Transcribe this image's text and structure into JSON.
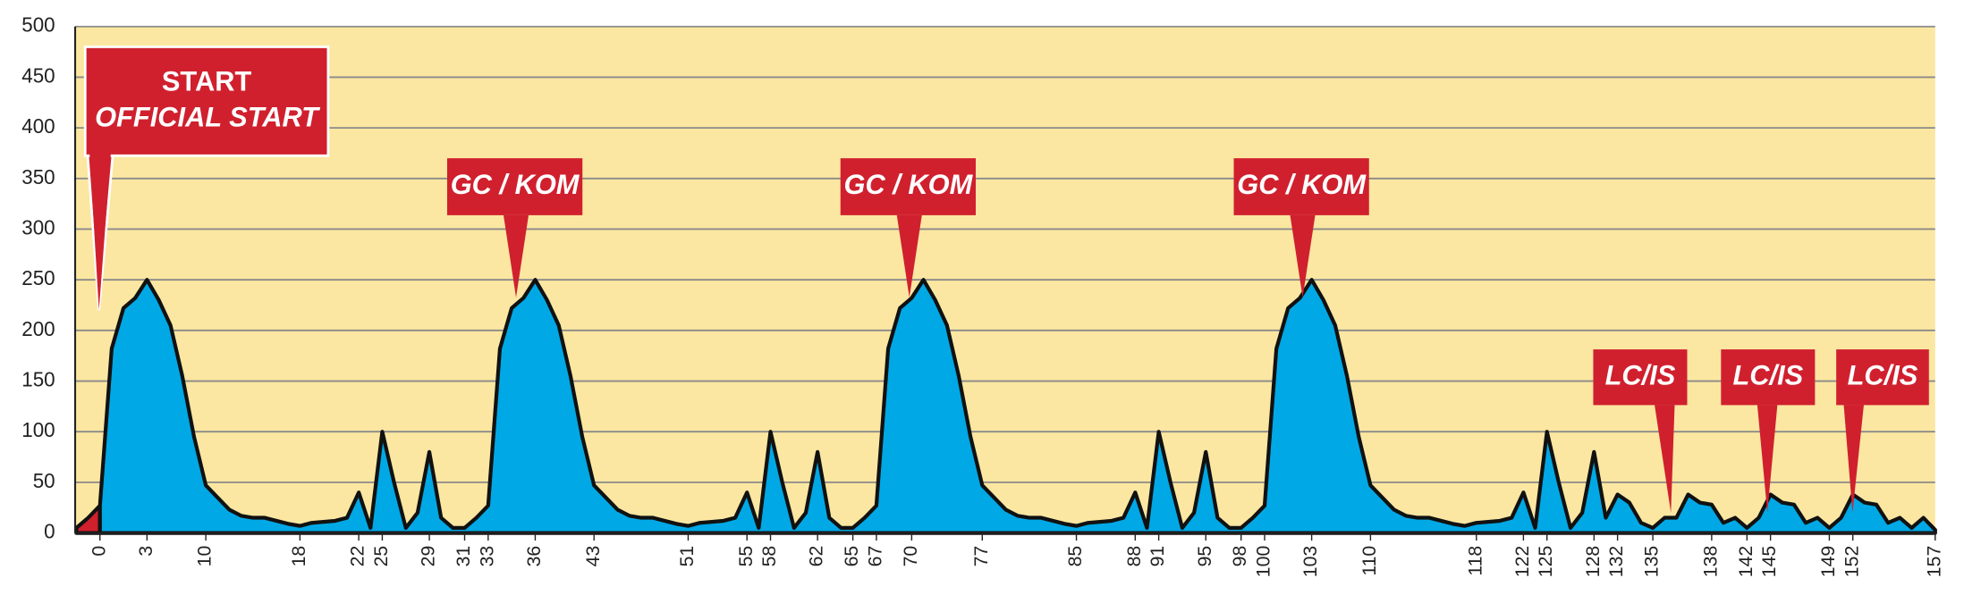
{
  "chart_data": {
    "type": "area",
    "categories": [
      null,
      null,
      0,
      null,
      null,
      null,
      3,
      null,
      null,
      null,
      null,
      10,
      null,
      null,
      null,
      null,
      null,
      null,
      null,
      18,
      null,
      null,
      null,
      null,
      22,
      null,
      25,
      null,
      null,
      null,
      29,
      null,
      null,
      31,
      null,
      33,
      null,
      null,
      null,
      36,
      null,
      null,
      null,
      null,
      43,
      null,
      null,
      null,
      null,
      null,
      null,
      null,
      51,
      null,
      null,
      null,
      null,
      55,
      null,
      58,
      null,
      null,
      null,
      62,
      null,
      null,
      65,
      null,
      67,
      null,
      null,
      70,
      null,
      null,
      null,
      null,
      null,
      77,
      null,
      null,
      null,
      null,
      null,
      null,
      null,
      85,
      null,
      null,
      null,
      null,
      88,
      null,
      91,
      null,
      null,
      null,
      95,
      null,
      null,
      98,
      null,
      100,
      null,
      null,
      null,
      103,
      null,
      null,
      null,
      null,
      110,
      null,
      null,
      null,
      null,
      null,
      null,
      null,
      null,
      118,
      null,
      null,
      null,
      122,
      null,
      125,
      null,
      null,
      null,
      128,
      null,
      132,
      null,
      null,
      135,
      null,
      null,
      null,
      null,
      138,
      null,
      null,
      142,
      null,
      145,
      null,
      null,
      null,
      null,
      149,
      null,
      152,
      null,
      null,
      null,
      null,
      null,
      null,
      157
    ],
    "series": [
      {
        "color": "#d0202e",
        "values": [
          5,
          15,
          27,
          null,
          null,
          null,
          null,
          null,
          null,
          null,
          null,
          null,
          null,
          null,
          null,
          null,
          null,
          null,
          null,
          null,
          null,
          null,
          null,
          null,
          null,
          null,
          null,
          null,
          null,
          null,
          null,
          null,
          null,
          null,
          null,
          null,
          null,
          null,
          null,
          null,
          null,
          null,
          null,
          null,
          null,
          null,
          null,
          null,
          null,
          null,
          null,
          null,
          null,
          null,
          null,
          null,
          null,
          null,
          null,
          null,
          null,
          null,
          null,
          null,
          null,
          null,
          null,
          null,
          null,
          null,
          null,
          null,
          null,
          null,
          null,
          null,
          null,
          null,
          null,
          null,
          null,
          null,
          null,
          null,
          null,
          null,
          null,
          null,
          null,
          null,
          null,
          null,
          null,
          null,
          null,
          null,
          null,
          null,
          null,
          null,
          null,
          null,
          null,
          null,
          null,
          null,
          null,
          null,
          null,
          null,
          null,
          null,
          null,
          null,
          null,
          null,
          null,
          null,
          null,
          null,
          null,
          null,
          null,
          null,
          null,
          null,
          null,
          null,
          null,
          null,
          null,
          null,
          null,
          null,
          null,
          null,
          null,
          null,
          null,
          null,
          null,
          null,
          null,
          null,
          null,
          null,
          null,
          null,
          null,
          null,
          null,
          null,
          null,
          null,
          null,
          null,
          null,
          null,
          null
        ]
      },
      {
        "color": "#00a8e6",
        "values": [
          null,
          null,
          27,
          182,
          222,
          232,
          250,
          230,
          205,
          155,
          95,
          47,
          35,
          23,
          17,
          15,
          15,
          12,
          9,
          7,
          10,
          11,
          12,
          15,
          40,
          5,
          100,
          50,
          5,
          20,
          80,
          15,
          5,
          5,
          15,
          27,
          182,
          222,
          232,
          250,
          230,
          205,
          155,
          95,
          47,
          35,
          23,
          17,
          15,
          15,
          12,
          9,
          7,
          10,
          11,
          12,
          15,
          40,
          5,
          100,
          50,
          5,
          20,
          80,
          15,
          5,
          5,
          15,
          27,
          182,
          222,
          232,
          250,
          230,
          205,
          155,
          95,
          47,
          35,
          23,
          17,
          15,
          15,
          12,
          9,
          7,
          10,
          11,
          12,
          15,
          40,
          5,
          100,
          50,
          5,
          20,
          80,
          15,
          5,
          5,
          15,
          27,
          182,
          222,
          232,
          250,
          230,
          205,
          155,
          95,
          47,
          35,
          23,
          17,
          15,
          15,
          12,
          9,
          7,
          10,
          11,
          12,
          15,
          40,
          5,
          100,
          50,
          5,
          20,
          80,
          15,
          38,
          30,
          10,
          5,
          15,
          15,
          38,
          30,
          28,
          10,
          15,
          5,
          15,
          38,
          30,
          28,
          10,
          15,
          5,
          15,
          38,
          30,
          28,
          10,
          15,
          5,
          15,
          3
        ]
      }
    ],
    "ylim": [
      0,
      500
    ],
    "yticks": [
      0,
      50,
      100,
      150,
      200,
      250,
      300,
      350,
      400,
      450,
      500
    ],
    "grid": true,
    "background": "#fbe7a1",
    "annotations": [
      [
        "START",
        "OFFICIAL START"
      ],
      [
        "GC / KOM"
      ],
      [
        "GC / KOM"
      ],
      [
        "GC / KOM"
      ],
      [
        "LC/IS"
      ],
      [
        "LC/IS"
      ],
      [
        "LC/IS"
      ]
    ]
  }
}
